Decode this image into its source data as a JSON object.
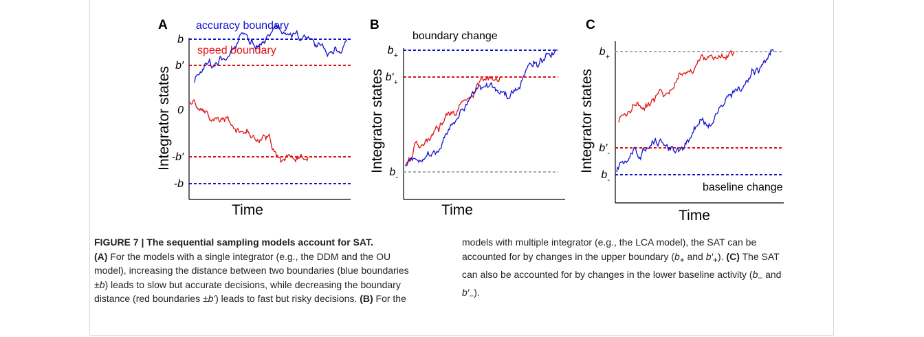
{
  "panels": [
    {
      "label": "A",
      "ylabel": "Integrator states",
      "xlabel": "Time",
      "annotations": [
        "accuracy boundary",
        "speed boundary"
      ],
      "boundaries": [
        {
          "label": "b",
          "sub": ""
        },
        {
          "label": "b′",
          "sub": ""
        },
        {
          "label": "0",
          "sub": ""
        },
        {
          "label": "-b′",
          "sub": ""
        },
        {
          "label": "-b",
          "sub": ""
        }
      ]
    },
    {
      "label": "B",
      "ylabel": "Integrator states",
      "xlabel": "Time",
      "annotations": [
        "boundary change"
      ],
      "boundaries": [
        {
          "label": "b",
          "sub": "+"
        },
        {
          "label": "b′",
          "sub": "+"
        },
        {
          "label": "b",
          "sub": "-"
        }
      ]
    },
    {
      "label": "C",
      "ylabel": "Integrator states",
      "xlabel": "Time",
      "annotations": [
        "baseline change"
      ],
      "boundaries": [
        {
          "label": "b",
          "sub": "+"
        },
        {
          "label": "b′",
          "sub": "-"
        },
        {
          "label": "b",
          "sub": "-"
        }
      ]
    }
  ],
  "caption": [
    "FIGURE 7 | The sequential sampling models account for SAT.",
    "(A)",
    " For the models with a single integrator (e.g., the DDM and the OU model), increasing the distance between two boundaries (blue boundaries ±",
    "b",
    ") leads to slow but accurate decisions, while decreasing the boundary distance (red boundaries ±",
    "b′",
    ") leads to fast but risky decisions. ",
    "(B)",
    " For the models with multiple integrator (e.g., the LCA model), the SAT can be accounted for by changes in the upper boundary (",
    "b",
    "+",
    " and ",
    "b′",
    "+",
    "). ",
    "(C)",
    " The SAT can also be accounted for by changes in the lower baseline activity (",
    "b",
    "−",
    " and ",
    "b′",
    "−",
    ")."
  ]
}
